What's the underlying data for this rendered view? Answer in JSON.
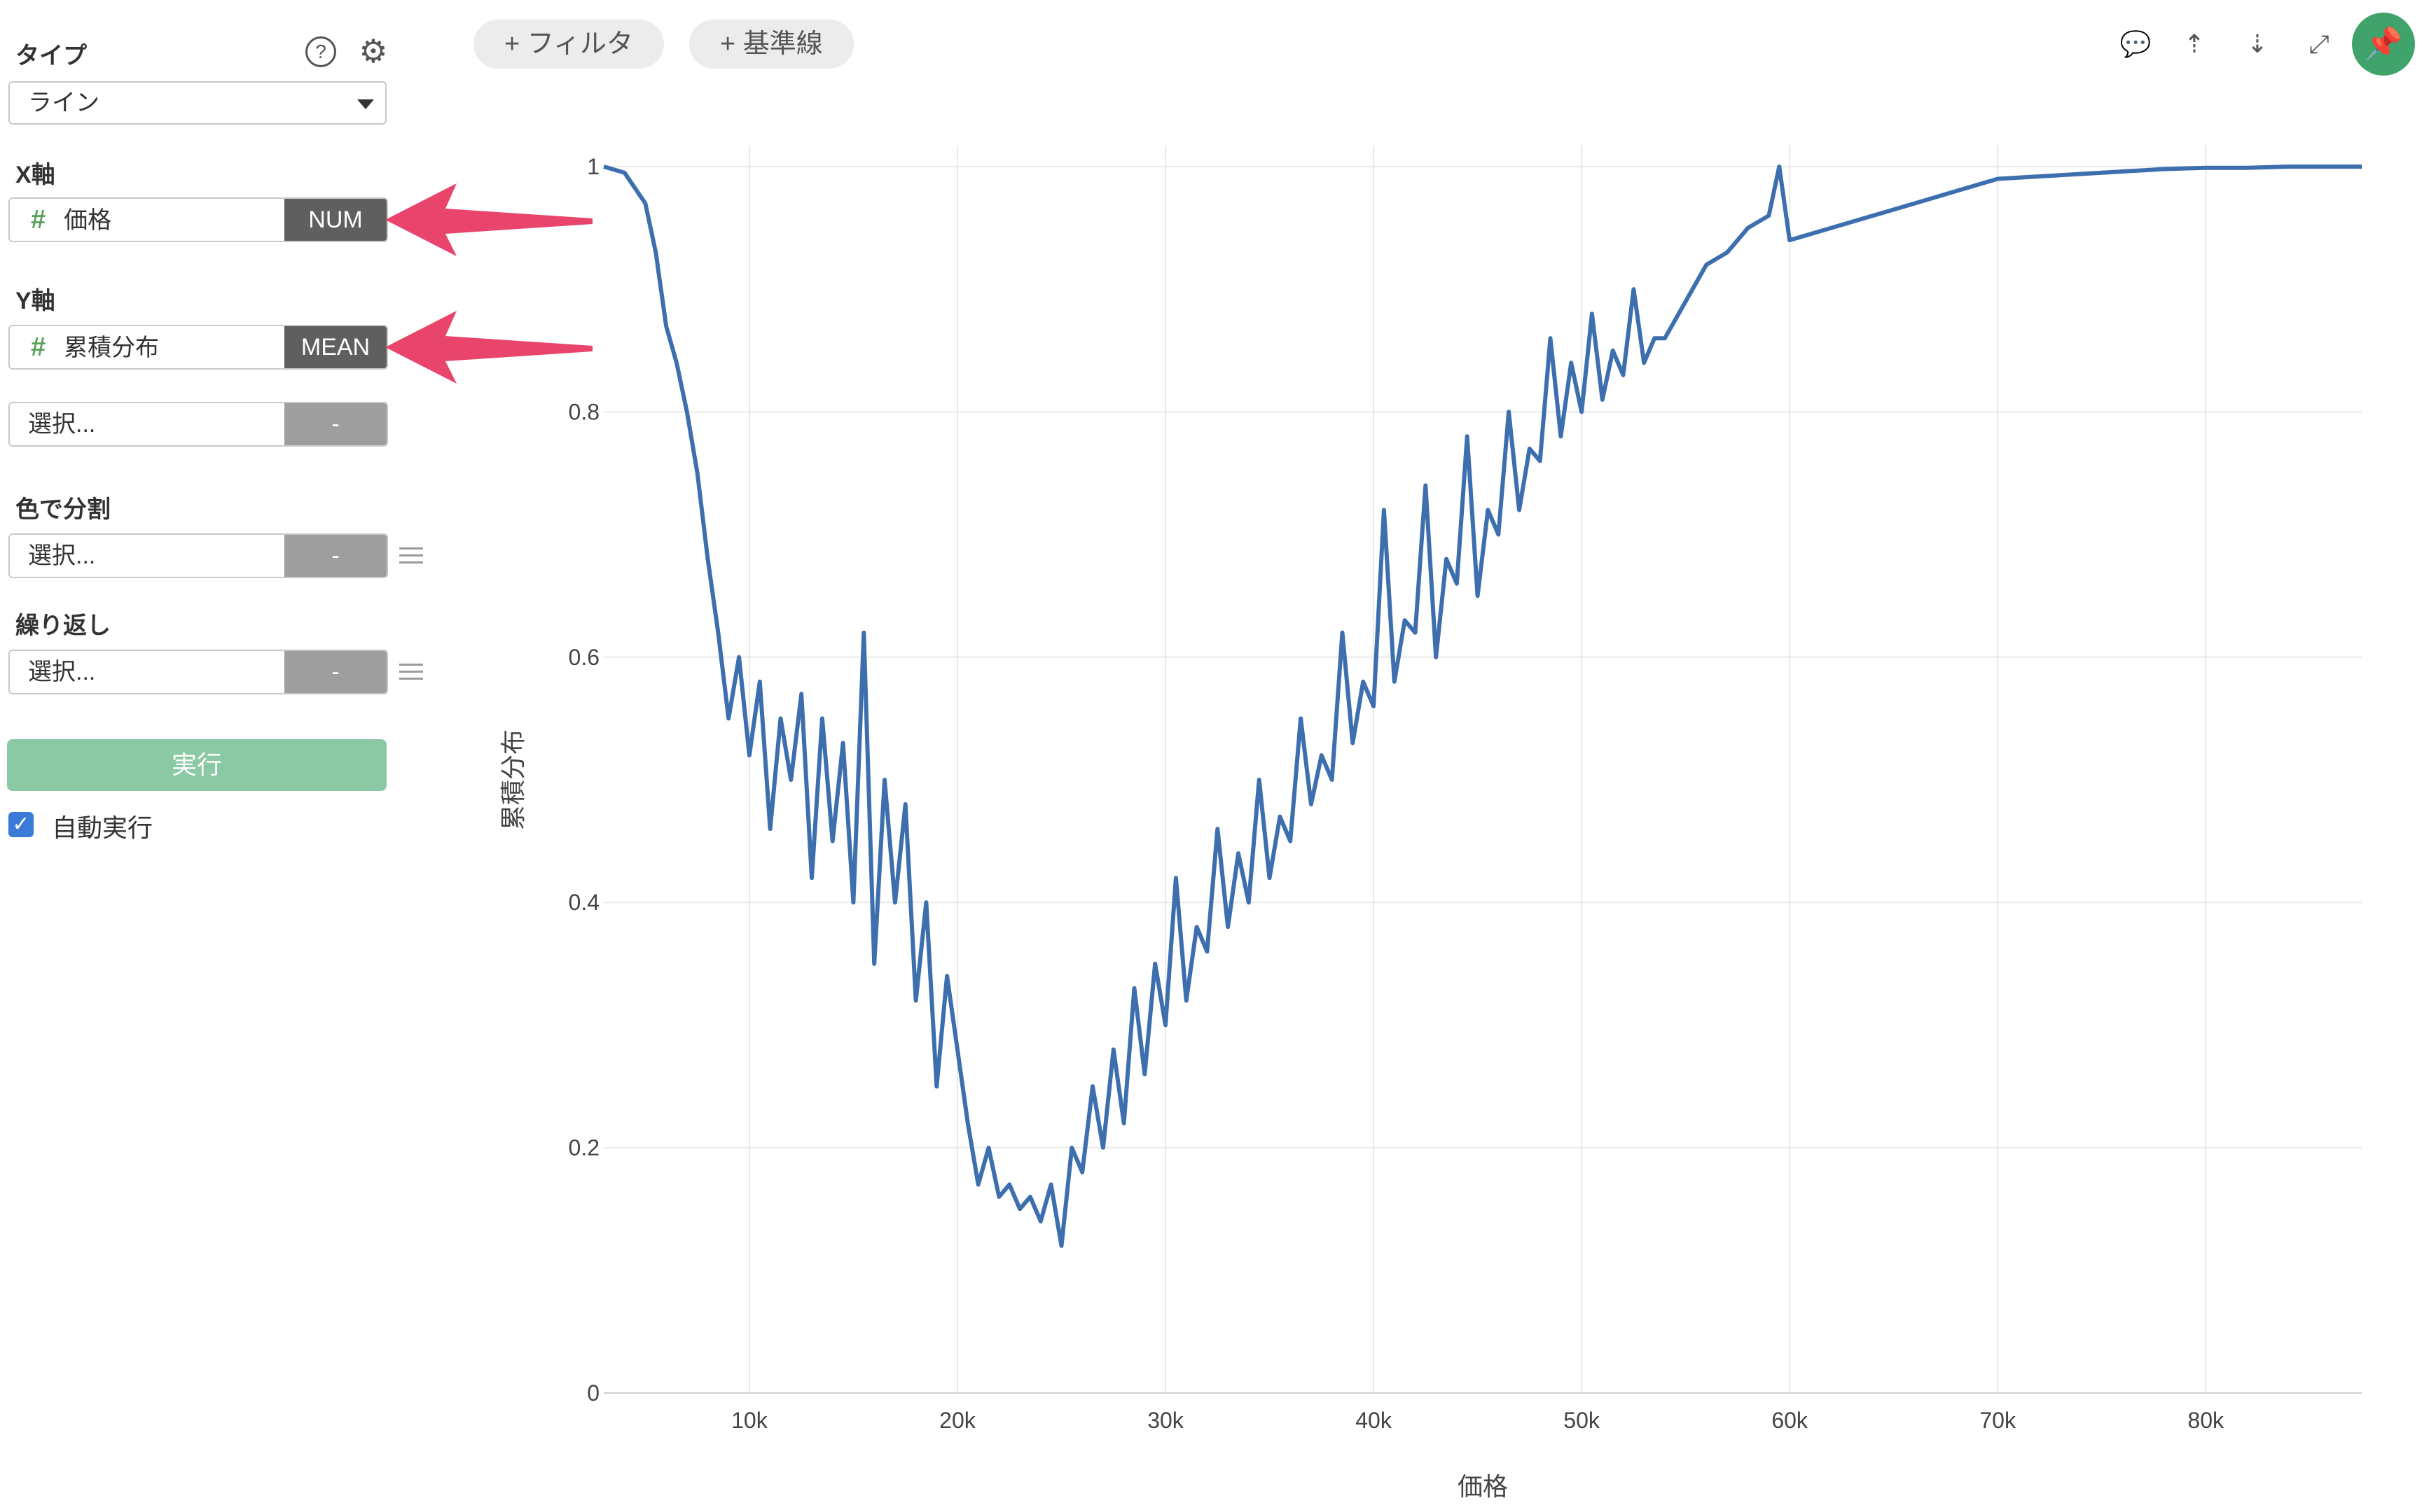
{
  "sidebar": {
    "type_label": "タイプ",
    "type_value": "ライン",
    "x_axis": {
      "label": "X軸",
      "field": "価格",
      "agg": "NUM"
    },
    "y_axis": {
      "label": "Y軸",
      "field": "累積分布",
      "agg": "MEAN"
    },
    "extra_select": {
      "placeholder": "選択...",
      "agg": "-"
    },
    "color_split": {
      "label": "色で分割",
      "placeholder": "選択...",
      "agg": "-"
    },
    "repeat": {
      "label": "繰り返し",
      "placeholder": "選択...",
      "agg": "-"
    },
    "run_label": "実行",
    "auto_run_label": "自動実行",
    "auto_run_checked": true
  },
  "toolbar": {
    "filter_label": "+ フィルタ",
    "refline_label": "+ 基準線"
  },
  "colors": {
    "line": "#3d6fae",
    "arrow": "#e8446c",
    "accent": "#3fa36b"
  },
  "chart_data": {
    "type": "line",
    "xlabel": "価格",
    "ylabel": "累積分布",
    "xlim": [
      3000,
      87500
    ],
    "ylim": [
      0,
      1
    ],
    "x_ticks": [
      10000,
      20000,
      30000,
      40000,
      50000,
      60000,
      70000,
      80000
    ],
    "x_tick_labels": [
      "10k",
      "20k",
      "30k",
      "40k",
      "50k",
      "60k",
      "70k",
      "80k"
    ],
    "y_ticks": [
      0,
      0.2,
      0.4,
      0.6,
      0.8,
      1
    ],
    "y_tick_labels": [
      "0",
      "0.2",
      "0.4",
      "0.6",
      "0.8",
      "1"
    ],
    "grid": true,
    "series": [
      {
        "x": [
          3000,
          4000,
          5000,
          5500,
          6000,
          6500,
          7000,
          7500,
          8000,
          8500,
          9000,
          9500,
          10000,
          10500,
          11000,
          11500,
          12000,
          12500,
          13000,
          13500,
          14000,
          14500,
          15000,
          15500,
          16000,
          16500,
          17000,
          17500,
          18000,
          18500,
          19000,
          19500,
          20000,
          20500,
          21000,
          21500,
          22000,
          22500,
          23000,
          23500,
          24000,
          24500,
          25000,
          25500,
          26000,
          26500,
          27000,
          27500,
          28000,
          28500,
          29000,
          29500,
          30000,
          30500,
          31000,
          31500,
          32000,
          32500,
          33000,
          33500,
          34000,
          34500,
          35000,
          35500,
          36000,
          36500,
          37000,
          37500,
          38000,
          38500,
          39000,
          39500,
          40000,
          40500,
          41000,
          41500,
          42000,
          42500,
          43000,
          43500,
          44000,
          44500,
          45000,
          45500,
          46000,
          46500,
          47000,
          47500,
          48000,
          48500,
          49000,
          49500,
          50000,
          50500,
          51000,
          51500,
          52000,
          52500,
          53000,
          53500,
          54000,
          55000,
          56000,
          57000,
          57500,
          58000,
          59000,
          59500,
          60000,
          62000,
          64000,
          66000,
          68000,
          70000,
          72000,
          74000,
          76000,
          78000,
          80000,
          82000,
          84000,
          87500
        ],
        "y": [
          1.0,
          0.995,
          0.97,
          0.93,
          0.87,
          0.84,
          0.8,
          0.75,
          0.68,
          0.62,
          0.55,
          0.6,
          0.52,
          0.58,
          0.46,
          0.55,
          0.5,
          0.57,
          0.42,
          0.55,
          0.45,
          0.53,
          0.4,
          0.62,
          0.35,
          0.5,
          0.4,
          0.48,
          0.32,
          0.4,
          0.25,
          0.34,
          0.28,
          0.22,
          0.17,
          0.2,
          0.16,
          0.17,
          0.15,
          0.16,
          0.14,
          0.17,
          0.12,
          0.2,
          0.18,
          0.25,
          0.2,
          0.28,
          0.22,
          0.33,
          0.26,
          0.35,
          0.3,
          0.42,
          0.32,
          0.38,
          0.36,
          0.46,
          0.38,
          0.44,
          0.4,
          0.5,
          0.42,
          0.47,
          0.45,
          0.55,
          0.48,
          0.52,
          0.5,
          0.62,
          0.53,
          0.58,
          0.56,
          0.72,
          0.58,
          0.63,
          0.62,
          0.74,
          0.6,
          0.68,
          0.66,
          0.78,
          0.65,
          0.72,
          0.7,
          0.8,
          0.72,
          0.77,
          0.76,
          0.86,
          0.78,
          0.84,
          0.8,
          0.88,
          0.81,
          0.85,
          0.83,
          0.9,
          0.84,
          0.86,
          0.86,
          0.89,
          0.92,
          0.93,
          0.94,
          0.95,
          0.96,
          1.0,
          0.94,
          0.95,
          0.96,
          0.97,
          0.98,
          0.99,
          0.992,
          0.994,
          0.996,
          0.998,
          0.999,
          0.999,
          1.0,
          1.0
        ]
      }
    ]
  }
}
